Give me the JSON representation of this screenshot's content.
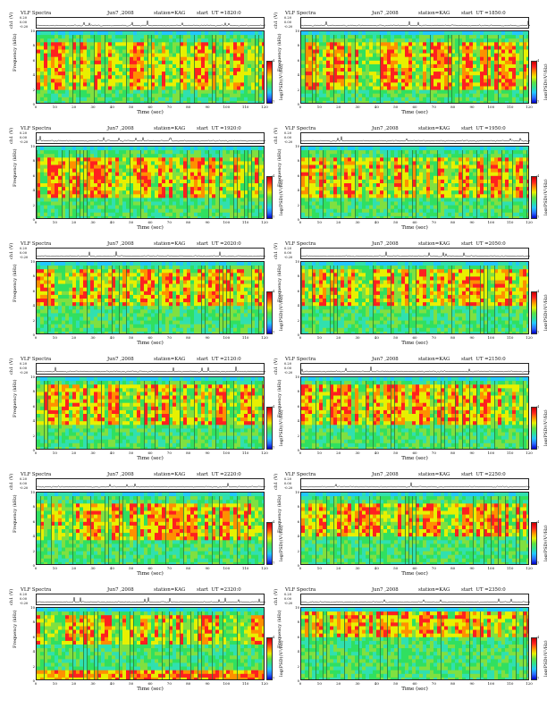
{
  "header_title": "VLF Spectra",
  "station_text": "station=KAG",
  "start_prefix": "start  UT =",
  "trace_label": "ch1 (V)",
  "trace_ticks": [
    "0.20",
    "0.00",
    "-0.20"
  ],
  "freq_label": "Frequency  (kHz)",
  "freq_ticks": [
    "10",
    "8",
    "6",
    "4",
    "2",
    "0"
  ],
  "time_label": "Time  (sec)",
  "time_ticks": [
    "0",
    "10",
    "20",
    "30",
    "40",
    "50",
    "60",
    "70",
    "80",
    "90",
    "100",
    "110",
    "120"
  ],
  "cbar_label": "log(PSD)(V²/Hz)",
  "cbar_ticks": [
    "-4",
    "-7"
  ],
  "colormap": [
    "#0000c8",
    "#2a6cff",
    "#22c8ff",
    "#30e0b0",
    "#30e060",
    "#80e040",
    "#e8f000",
    "#ff9000",
    "#ff2020"
  ],
  "panels": [
    {
      "date": "Jun7 ,2008",
      "start": "1820:0",
      "burst": [
        2,
        8.4
      ],
      "low": 0
    },
    {
      "date": "Jun7 ,2008",
      "start": "1850:0",
      "burst": [
        2,
        8.4
      ],
      "low": 0
    },
    {
      "date": "Jun7 ,2008",
      "start": "1920:0",
      "burst": [
        3,
        8.6
      ],
      "low": 0
    },
    {
      "date": "Jun7 ,2008",
      "start": "1950:0",
      "burst": [
        3,
        8.6
      ],
      "low": 0
    },
    {
      "date": "Jun7 ,2008",
      "start": "2020:0",
      "burst": [
        4,
        9.0
      ],
      "low": 0
    },
    {
      "date": "Jun7 ,2008",
      "start": "2050:0",
      "burst": [
        4,
        9.0
      ],
      "low": 0
    },
    {
      "date": "Jun7 ,2008",
      "start": "2120:0",
      "burst": [
        3.5,
        9.0
      ],
      "low": 0
    },
    {
      "date": "Jun7 ,2008",
      "start": "2150:0",
      "burst": [
        3.5,
        9.0
      ],
      "low": 0
    },
    {
      "date": "Jun7 ,2008",
      "start": "2220:0",
      "burst": [
        3.5,
        8.5
      ],
      "low": 0
    },
    {
      "date": "Jun7 ,2008",
      "start": "2250:0",
      "burst": [
        4,
        8.5
      ],
      "low": 0
    },
    {
      "date": "Jun7 ,2008",
      "start": "2320:0",
      "burst": [
        5,
        9.0
      ],
      "low": 1
    },
    {
      "date": "Jun7 ,2008",
      "start": "2350:0",
      "burst": [
        6,
        9.5
      ],
      "low": 0
    }
  ]
}
